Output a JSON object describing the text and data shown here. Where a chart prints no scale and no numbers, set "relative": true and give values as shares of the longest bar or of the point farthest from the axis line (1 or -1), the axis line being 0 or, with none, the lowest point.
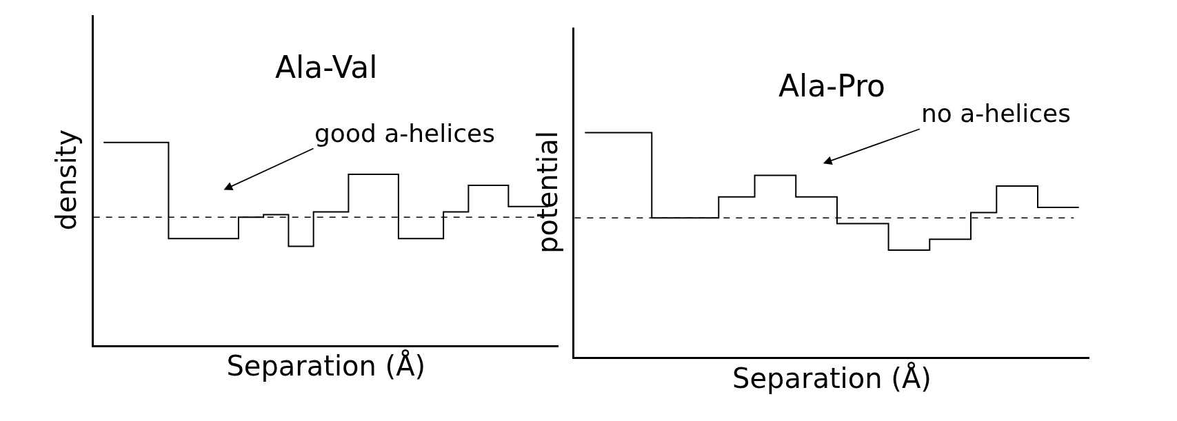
{
  "chart_data": [
    {
      "type": "step",
      "title": "Ala-Val",
      "xlabel": "Separation (Å)",
      "ylabel": "density",
      "relative": true,
      "tick_labels": false,
      "categories": [
        null,
        null,
        null,
        null,
        null,
        null,
        null,
        null,
        null,
        null,
        null,
        null,
        null,
        null,
        null,
        null,
        null,
        null,
        null,
        null,
        null,
        null,
        null,
        null,
        null,
        null,
        null,
        null,
        null,
        null,
        null,
        null,
        null,
        null,
        null,
        null,
        null,
        null,
        null,
        null,
        null,
        null,
        null,
        null,
        null,
        null,
        null,
        null,
        null,
        null,
        null,
        null,
        null,
        null,
        null,
        null,
        null,
        null,
        null,
        null,
        null,
        null,
        null,
        null,
        null,
        null,
        null,
        null,
        null,
        null,
        null,
        null,
        null,
        null,
        null,
        null,
        null,
        null,
        null,
        null,
        null,
        null,
        null,
        null,
        null,
        null,
        null,
        null,
        null,
        null
      ],
      "series": [
        {
          "color": "#000000",
          "values": [
            1,
            1,
            1,
            1,
            1,
            1,
            1,
            1,
            1,
            1,
            1,
            1,
            1,
            0.525,
            0.525,
            0.525,
            0.525,
            0.525,
            0.525,
            0.525,
            0.525,
            0.525,
            0.525,
            0.525,
            0.525,
            0.525,
            0.525,
            0.631,
            0.631,
            0.631,
            0.631,
            0.631,
            0.644,
            0.644,
            0.644,
            0.644,
            0.644,
            0.487,
            0.487,
            0.487,
            0.487,
            0.487,
            0.657,
            0.657,
            0.657,
            0.657,
            0.657,
            0.657,
            0.657,
            0.843,
            0.843,
            0.843,
            0.843,
            0.843,
            0.843,
            0.843,
            0.843,
            0.843,
            0.843,
            0.525,
            0.525,
            0.525,
            0.525,
            0.525,
            0.525,
            0.525,
            0.525,
            0.525,
            0.657,
            0.657,
            0.657,
            0.657,
            0.657,
            0.788,
            0.788,
            0.788,
            0.788,
            0.788,
            0.788,
            0.788,
            0.788,
            0.684,
            0.684,
            0.684,
            0.684,
            0.684,
            0.684,
            0.684,
            0.684,
            0.684
          ]
        }
      ],
      "ref_lines": [
        {
          "axis": "y",
          "value": 0.631,
          "color": "#000000",
          "line_style": "dashed"
        }
      ],
      "annotations": [
        "good a-helices"
      ]
    },
    {
      "type": "step",
      "title": "Ala-Pro",
      "xlabel": "Separation (Å)",
      "ylabel": "potential",
      "relative": true,
      "tick_labels": false,
      "categories": [
        null,
        null,
        null,
        null,
        null,
        null,
        null,
        null,
        null,
        null,
        null,
        null,
        null,
        null,
        null,
        null,
        null,
        null,
        null,
        null,
        null,
        null,
        null,
        null,
        null,
        null,
        null,
        null,
        null,
        null,
        null,
        null,
        null,
        null,
        null,
        null,
        null,
        null,
        null,
        null,
        null,
        null,
        null,
        null,
        null,
        null,
        null,
        null,
        null,
        null,
        null,
        null,
        null,
        null,
        null,
        null,
        null,
        null,
        null,
        null,
        null,
        null,
        null,
        null,
        null,
        null,
        null,
        null,
        null,
        null,
        null,
        null,
        null,
        null,
        null,
        null,
        null,
        null,
        null,
        null,
        null,
        null,
        null,
        null,
        null,
        null,
        null,
        null,
        null,
        null,
        null,
        null,
        null,
        null,
        null,
        null,
        null
      ],
      "series": [
        {
          "color": "#000000",
          "values": [
            1,
            1,
            1,
            1,
            1,
            1,
            1,
            1,
            1,
            1,
            1,
            1,
            1,
            0.62,
            0.62,
            0.62,
            0.62,
            0.62,
            0.62,
            0.62,
            0.62,
            0.62,
            0.62,
            0.62,
            0.62,
            0.62,
            0.714,
            0.714,
            0.714,
            0.714,
            0.714,
            0.714,
            0.714,
            0.81,
            0.81,
            0.81,
            0.81,
            0.81,
            0.81,
            0.81,
            0.81,
            0.714,
            0.714,
            0.714,
            0.714,
            0.714,
            0.714,
            0.714,
            0.714,
            0.595,
            0.595,
            0.595,
            0.595,
            0.595,
            0.595,
            0.595,
            0.595,
            0.595,
            0.595,
            0.477,
            0.477,
            0.477,
            0.477,
            0.477,
            0.477,
            0.477,
            0.477,
            0.525,
            0.525,
            0.525,
            0.525,
            0.525,
            0.525,
            0.525,
            0.525,
            0.644,
            0.644,
            0.644,
            0.644,
            0.644,
            0.762,
            0.762,
            0.762,
            0.762,
            0.762,
            0.762,
            0.762,
            0.762,
            0.667,
            0.667,
            0.667,
            0.667,
            0.667,
            0.667,
            0.667,
            0.667,
            0.667
          ]
        }
      ],
      "ref_lines": [
        {
          "axis": "y",
          "value": 0.62,
          "color": "#000000",
          "line_style": "dashed"
        }
      ],
      "annotations": [
        "no a-helices"
      ]
    }
  ]
}
